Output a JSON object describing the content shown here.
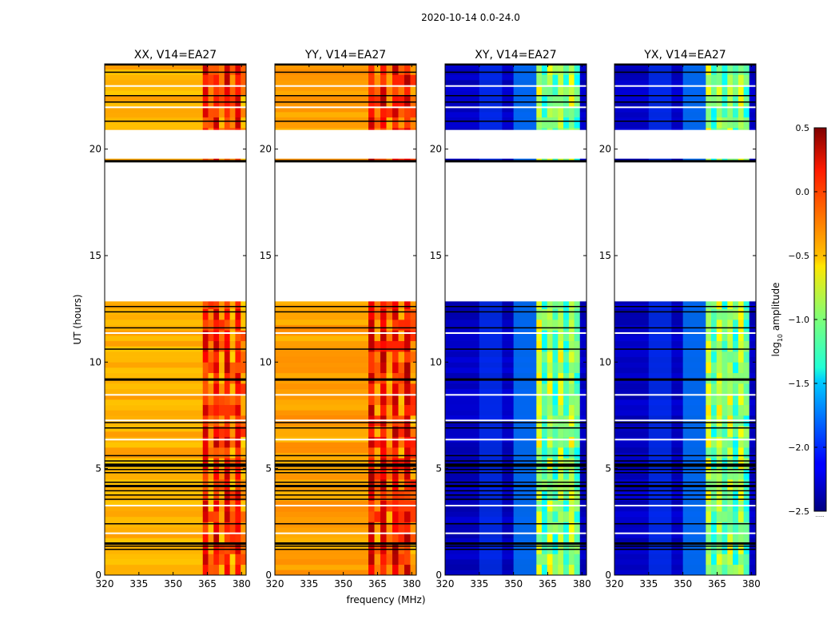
{
  "figure": {
    "suptitle": "2020-10-14 0.0-24.0",
    "ylabel": "UT (hours)",
    "xlabel": "frequency (MHz)",
    "colorbar_label": "log",
    "colorbar_label_sub": "10",
    "colorbar_label_rest": " amplitude",
    "colorbar_footnote": "......"
  },
  "chart_data": [
    {
      "type": "heatmap",
      "title": "XX, V14=EA27",
      "x_range": [
        320,
        382
      ],
      "y_range": [
        0,
        24
      ],
      "xticks": [
        320,
        335,
        350,
        365,
        380
      ],
      "yticks": [
        0,
        5,
        10,
        15,
        20
      ],
      "ylabel": "UT (hours)",
      "polarization": "XX",
      "base_level": -0.4,
      "band_level": 0.1,
      "band_mhz": [
        363,
        382
      ],
      "data_gap_hours": [
        [
          12.85,
          19.4
        ],
        [
          19.55,
          20.9
        ]
      ],
      "flag_lines_hours": [
        24.0,
        23.6,
        22.5,
        22.2,
        21.3,
        19.45,
        12.6,
        12.35,
        11.6,
        10.6,
        9.2,
        7.15,
        6.9,
        5.6,
        5.35,
        5.2,
        5.1,
        4.95,
        4.8,
        4.35,
        4.2,
        3.95,
        3.75,
        3.55,
        2.4,
        1.5,
        1.35,
        1.2
      ]
    },
    {
      "type": "heatmap",
      "title": "YY, V14=EA27",
      "x_range": [
        320,
        382
      ],
      "y_range": [
        0,
        24
      ],
      "xticks": [
        320,
        335,
        350,
        365,
        380
      ],
      "yticks": [
        0,
        5,
        10,
        15,
        20
      ],
      "xlabel": "frequency (MHz)",
      "polarization": "YY",
      "base_level": -0.35,
      "band_level": 0.15,
      "band_mhz": [
        361,
        382
      ],
      "data_gap_hours": [
        [
          12.85,
          19.4
        ],
        [
          19.55,
          20.9
        ]
      ],
      "flag_lines_hours": [
        24.0,
        23.6,
        22.5,
        22.2,
        21.3,
        19.45,
        12.6,
        12.35,
        11.6,
        10.6,
        9.2,
        7.15,
        6.9,
        5.6,
        5.35,
        5.2,
        5.1,
        4.95,
        4.8,
        4.35,
        4.2,
        3.95,
        3.75,
        3.55,
        2.4,
        1.5,
        1.35,
        1.2
      ]
    },
    {
      "type": "heatmap",
      "title": "XY, V14=EA27",
      "x_range": [
        320,
        382
      ],
      "y_range": [
        0,
        24
      ],
      "xticks": [
        320,
        335,
        350,
        365,
        380
      ],
      "yticks": [
        0,
        5,
        10,
        15,
        20
      ],
      "polarization": "XY",
      "base_level": -2.3,
      "band_level": -0.8,
      "band_mhz": [
        360,
        379
      ],
      "data_gap_hours": [
        [
          12.85,
          19.4
        ],
        [
          19.55,
          20.9
        ]
      ],
      "flag_lines_hours": [
        24.0,
        23.6,
        22.5,
        22.2,
        21.3,
        19.45,
        12.6,
        12.35,
        11.6,
        10.6,
        9.2,
        7.15,
        6.9,
        5.6,
        5.35,
        5.2,
        5.1,
        4.95,
        4.8,
        4.35,
        4.2,
        3.95,
        3.75,
        3.55,
        2.4,
        1.5,
        1.35,
        1.2
      ]
    },
    {
      "type": "heatmap",
      "title": "YX, V14=EA27",
      "x_range": [
        320,
        382
      ],
      "y_range": [
        0,
        24
      ],
      "xticks": [
        320,
        335,
        350,
        365,
        380
      ],
      "yticks": [
        0,
        5,
        10,
        15,
        20
      ],
      "polarization": "YX",
      "base_level": -2.3,
      "band_level": -0.8,
      "band_mhz": [
        360,
        379
      ],
      "data_gap_hours": [
        [
          12.85,
          19.4
        ],
        [
          19.55,
          20.9
        ]
      ],
      "flag_lines_hours": [
        24.0,
        23.6,
        22.5,
        22.2,
        21.3,
        19.45,
        12.6,
        12.35,
        11.6,
        10.6,
        9.2,
        7.15,
        6.9,
        5.6,
        5.35,
        5.2,
        5.1,
        4.95,
        4.8,
        4.35,
        4.2,
        3.95,
        3.75,
        3.55,
        2.4,
        1.5,
        1.35,
        1.2
      ]
    }
  ],
  "colorbar": {
    "type": "colorbar",
    "colormap": "jet",
    "range": [
      -2.5,
      0.5
    ],
    "ticks": [
      0.5,
      0.0,
      -0.5,
      -1.0,
      -1.5,
      -2.0,
      -2.5
    ],
    "tick_labels": [
      "0.5",
      "0.0",
      "−0.5",
      "−1.0",
      "−1.5",
      "−2.0",
      "−2.5"
    ]
  }
}
